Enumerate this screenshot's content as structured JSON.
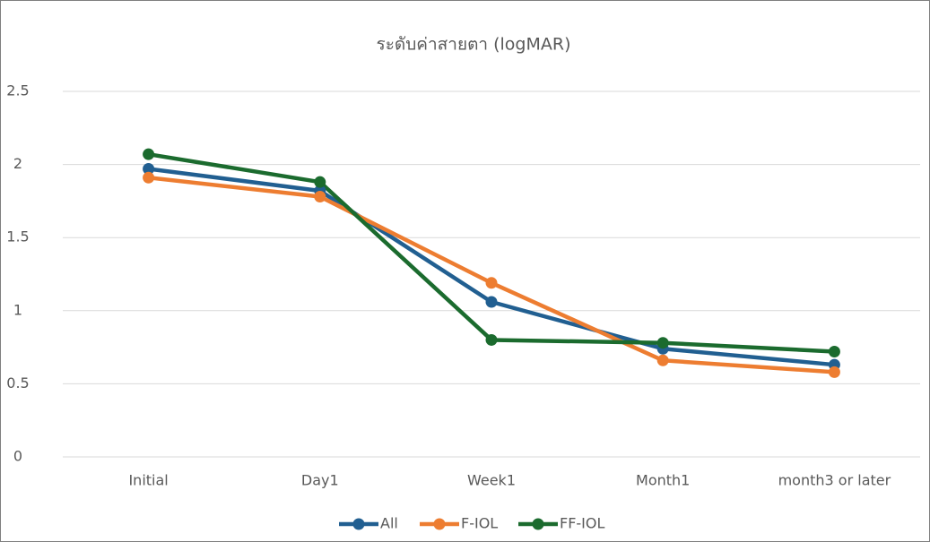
{
  "chart_data": {
    "type": "line",
    "title": "ระดับค่าสายตา (logMAR)",
    "categories": [
      "Initial",
      "Day1",
      "Week1",
      "Month1",
      "month3 or later"
    ],
    "series": [
      {
        "name": "All",
        "color": "#215f91",
        "values": [
          1.97,
          1.82,
          1.06,
          0.74,
          0.63
        ]
      },
      {
        "name": "F-IOL",
        "color": "#ed7d31",
        "values": [
          1.91,
          1.78,
          1.19,
          0.66,
          0.58
        ]
      },
      {
        "name": "FF-IOL",
        "color": "#1b6b2e",
        "values": [
          2.07,
          1.88,
          0.8,
          0.78,
          0.72
        ]
      }
    ],
    "ylim": [
      0,
      2.5
    ],
    "yticks": [
      0,
      0.5,
      1,
      1.5,
      2,
      2.5
    ],
    "grid": true,
    "legend": "bottom"
  }
}
